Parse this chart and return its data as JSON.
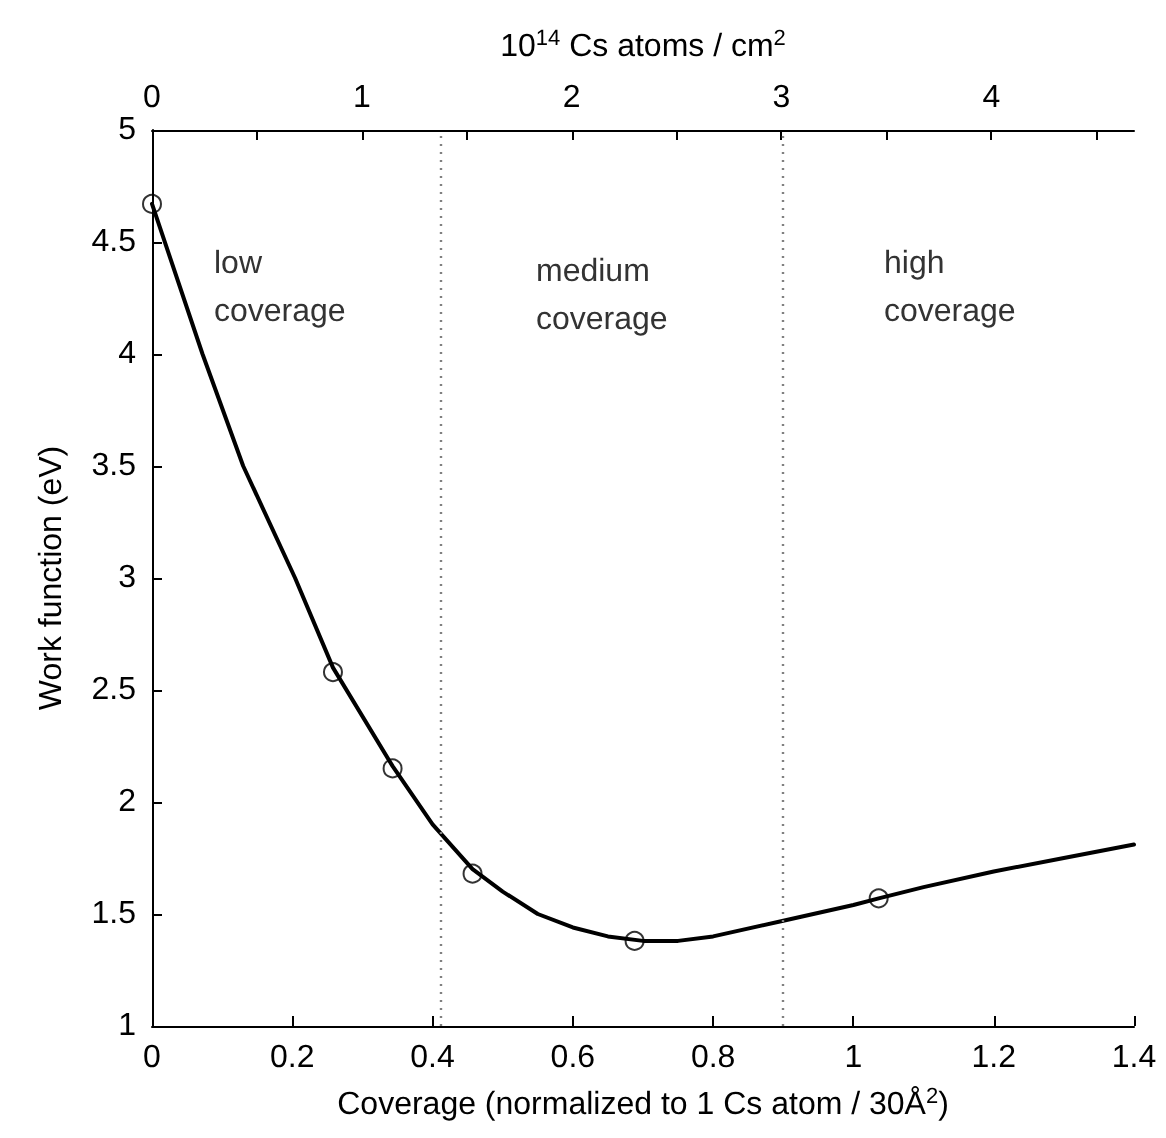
{
  "chart_data": {
    "type": "line",
    "xlabel": "Coverage (normalized to 1 Cs atom / 30Å$^{2}$)",
    "ylabel": "Work function (eV)",
    "x2label": "10$^{14}$ Cs atoms / cm$^{2}$",
    "xlim": [
      0,
      1.4
    ],
    "xticks": [
      0,
      0.2,
      0.4,
      0.6,
      0.8,
      1,
      1.2,
      1.4
    ],
    "ylim": [
      1,
      5
    ],
    "yticks": [
      1,
      1.5,
      2,
      2.5,
      3,
      3.5,
      4,
      4.5,
      5
    ],
    "x2lim": [
      0,
      4.68
    ],
    "x2ticks": [
      0,
      {
        "value": 0.5,
        "label": null
      },
      1,
      {
        "value": 1.5,
        "label": null
      },
      2,
      {
        "value": 2.5,
        "label": null
      },
      3,
      {
        "value": 3.5,
        "label": null
      },
      4,
      {
        "value": 4.5,
        "label": null
      }
    ],
    "grid": false,
    "series": [
      {
        "color": "#000000",
        "marker": "none",
        "line_style": "solid",
        "x": [
          0,
          0.072,
          0.13,
          0.204,
          0.258,
          0.343,
          0.4,
          0.457,
          0.5,
          0.55,
          0.6,
          0.65,
          0.7,
          0.75,
          0.8,
          0.9,
          1.0,
          1.036,
          1.1,
          1.2,
          1.3,
          1.4
        ],
        "values": [
          4.67,
          4.0,
          3.5,
          3.0,
          2.6,
          2.16,
          1.9,
          1.7,
          1.6,
          1.5,
          1.44,
          1.4,
          1.38,
          1.38,
          1.4,
          1.47,
          1.54,
          1.57,
          1.62,
          1.69,
          1.75,
          1.81
        ]
      },
      {
        "type": "scatter",
        "color": "#000000",
        "marker": "circle",
        "x": [
          0,
          0.258,
          0.343,
          0.457,
          0.688,
          1.036
        ],
        "values": [
          4.67,
          2.58,
          2.15,
          1.68,
          1.38,
          1.57
        ]
      }
    ],
    "ref_lines": [
      {
        "axis": "x",
        "value": 0.415,
        "label": null,
        "color": "#808080",
        "line_style": "dotted"
      },
      {
        "axis": "x",
        "value": 0.9,
        "label": null,
        "color": "#808080",
        "line_style": "dotted"
      }
    ],
    "annotations": [
      "low\ncoverage",
      "medium\ncoverage",
      "high\ncoverage"
    ]
  }
}
